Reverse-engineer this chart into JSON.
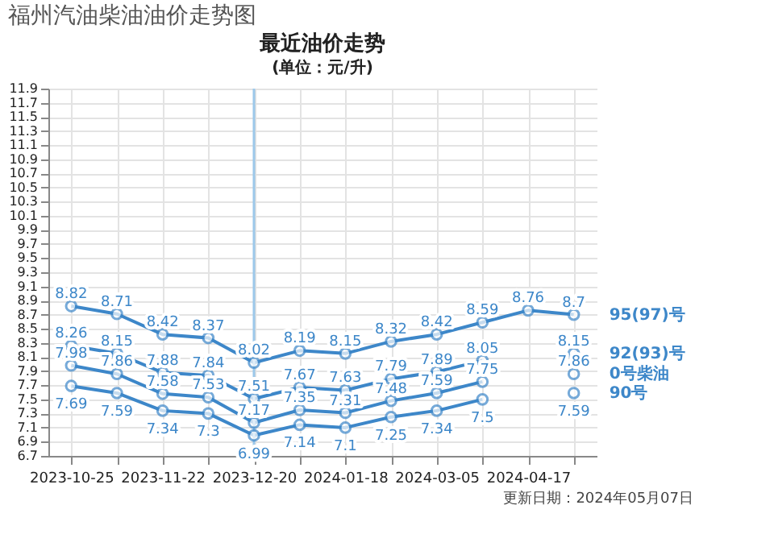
{
  "chart_data": {
    "type": "line",
    "title": "福州汽油柴油油价走势图",
    "subtitle": "最近油价走势",
    "annotations": [
      "(单位：元/升)",
      "更新日期：2024年05月07日"
    ],
    "categories": [
      "2023-10-25",
      null,
      "2023-11-22",
      null,
      "2023-12-20",
      null,
      "2024-01-18",
      null,
      "2024-03-05",
      null,
      "2024-04-17",
      null
    ],
    "series": [
      {
        "name": "95(97)号",
        "color": "#3d87c9",
        "values": [
          8.82,
          8.71,
          8.42,
          8.37,
          8.02,
          8.19,
          8.15,
          8.32,
          8.42,
          8.59,
          8.76,
          8.7
        ]
      },
      {
        "name": "92(93)号",
        "color": "#3d87c9",
        "values": [
          8.26,
          8.15,
          7.88,
          7.84,
          7.51,
          7.67,
          7.63,
          7.79,
          7.89,
          8.05,
          null,
          8.15
        ]
      },
      {
        "name": "0号柴油",
        "color": "#3d87c9",
        "values": [
          7.98,
          7.86,
          7.58,
          7.53,
          7.17,
          7.35,
          7.31,
          7.48,
          7.59,
          7.75,
          null,
          7.86
        ]
      },
      {
        "name": "90号",
        "color": "#3d87c9",
        "values": [
          7.69,
          7.59,
          7.34,
          7.3,
          6.99,
          7.14,
          7.1,
          7.25,
          7.34,
          7.5,
          null,
          7.59
        ]
      }
    ],
    "ylim": [
      6.7,
      11.9
    ],
    "yticks": [
      6.7,
      6.9,
      7.1,
      7.3,
      7.5,
      7.7,
      7.9,
      8.1,
      8.3,
      8.5,
      8.7,
      8.9,
      9.1,
      9.3,
      9.5,
      9.7,
      9.9,
      10.1,
      10.3,
      10.5,
      10.7,
      10.9,
      11.1,
      11.3,
      11.5,
      11.7,
      11.9
    ],
    "ref_lines": [
      {
        "axis": "x",
        "value": "2023-12-20",
        "color": "#9cc8ea"
      }
    ],
    "grid": true,
    "marker": "circle",
    "line_style": "solid",
    "data_labels": true,
    "legend": false
  }
}
